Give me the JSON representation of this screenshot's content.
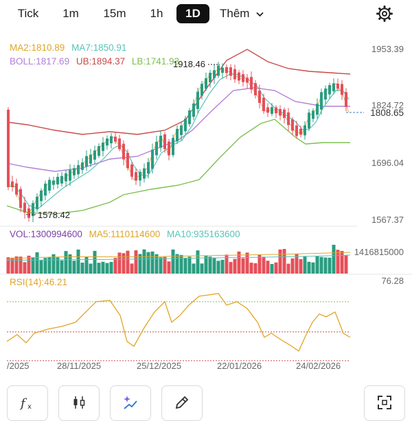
{
  "tabs": [
    {
      "label": "Tick"
    },
    {
      "label": "1m"
    },
    {
      "label": "15m"
    },
    {
      "label": "1h"
    },
    {
      "label": "1D",
      "active": true
    },
    {
      "label": "Thêm"
    }
  ],
  "legend_main": {
    "ma2": "MA2:1810.89",
    "ma7": "MA7:1850.91",
    "boll": "BOLL:1817.69",
    "ub": "UB:1894.37",
    "lb": "LB:1741.93"
  },
  "legend_vol": {
    "vol": "VOL:1300994600",
    "ma5": "MA5:1110114600",
    "ma10": "MA10:935163600"
  },
  "legend_rsi": {
    "rsi": "RSI(14):46.21"
  },
  "colors": {
    "up": "#2a9d80",
    "down": "#e5505a",
    "ma2": "#e0a526",
    "ma7": "#58c4b8",
    "boll": "#b47ed8",
    "ub": "#c94a4a",
    "lb": "#7cc04f",
    "rsi": "#e0a526"
  },
  "price_axis": {
    "labels": [
      "1953.39",
      "1824.72",
      "1696.04",
      "1567.37"
    ],
    "current": "1808.65"
  },
  "vol_axis": {
    "label": "1416815000"
  },
  "rsi_axis": {
    "label": "76.28"
  },
  "annotations": {
    "high": "1918.46",
    "low": "1578.42"
  },
  "date_labels": [
    "/2025",
    "28/11/2025",
    "25/12/2025",
    "22/01/2026",
    "24/02/2026"
  ],
  "bottom_icons": [
    "fx-icon",
    "candlestick-icon",
    "sparkle-chart-icon",
    "pencil-icon",
    "fullscreen-icon"
  ]
}
